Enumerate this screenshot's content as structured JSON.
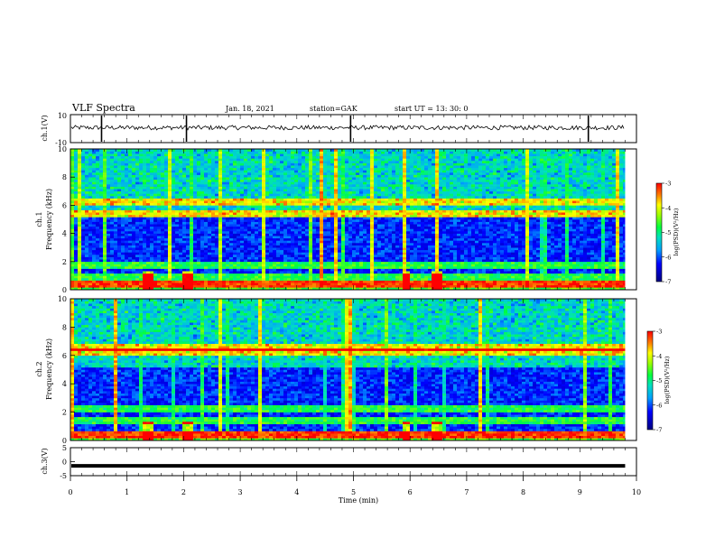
{
  "header": {
    "title": "VLF Spectra",
    "date": "Jan. 18, 2021",
    "station": "station=GAK",
    "start": "start  UT =   13: 30: 0"
  },
  "chart_data": [
    {
      "type": "line",
      "name": "ch1-waveform",
      "ylabel": "ch.1(V)",
      "ylim": [
        -10,
        10
      ],
      "y_ticks": [
        "10",
        "-10"
      ],
      "mean_value": 0.7,
      "spikes_min": [
        0.55,
        2.05,
        4.95,
        9.15
      ]
    },
    {
      "type": "heatmap",
      "name": "ch1-spectrogram",
      "ylabel": "ch.1\nFrequency  (kHz)",
      "ylim": [
        0,
        10
      ],
      "y_ticks": [
        "0",
        "2",
        "4",
        "6",
        "8",
        "10"
      ],
      "colorbar": {
        "label": "log(PSD)(V²/Hz)",
        "range": [
          -7,
          -3
        ],
        "ticks": [
          "-3",
          "-4",
          "-5",
          "-6",
          "-7"
        ]
      },
      "bright_bands_kHz": [
        0.4,
        0.9,
        1.6,
        5.3,
        6.2
      ],
      "bursts_min": [
        1.35,
        2.05,
        5.9,
        6.45
      ]
    },
    {
      "type": "heatmap",
      "name": "ch2-spectrogram",
      "ylabel": "ch.2\nFrequency  (kHz)",
      "ylim": [
        0,
        10
      ],
      "y_ticks": [
        "0",
        "2",
        "4",
        "6",
        "8",
        "10"
      ],
      "colorbar": {
        "label": "log(PSD)(V²/Hz)",
        "range": [
          -7,
          -3
        ],
        "ticks": [
          "-3",
          "-4",
          "-5",
          "-6",
          "-7"
        ]
      },
      "bright_bands_kHz": [
        0.4,
        1.4,
        2.1,
        6.1,
        6.5
      ],
      "bursts_min": [
        1.35,
        2.05,
        5.9,
        6.45
      ]
    },
    {
      "type": "line",
      "name": "ch3-level",
      "ylabel": "ch.3(V)",
      "ylim": [
        -5,
        5
      ],
      "y_ticks": [
        "5",
        "0",
        "-5"
      ],
      "value": -1.5
    }
  ],
  "time_axis": {
    "label": "Time  (min)",
    "xlim": [
      0,
      10
    ],
    "data_end": 9.8,
    "ticks": [
      "0",
      "1",
      "2",
      "3",
      "4",
      "5",
      "6",
      "7",
      "8",
      "9",
      "10"
    ]
  }
}
